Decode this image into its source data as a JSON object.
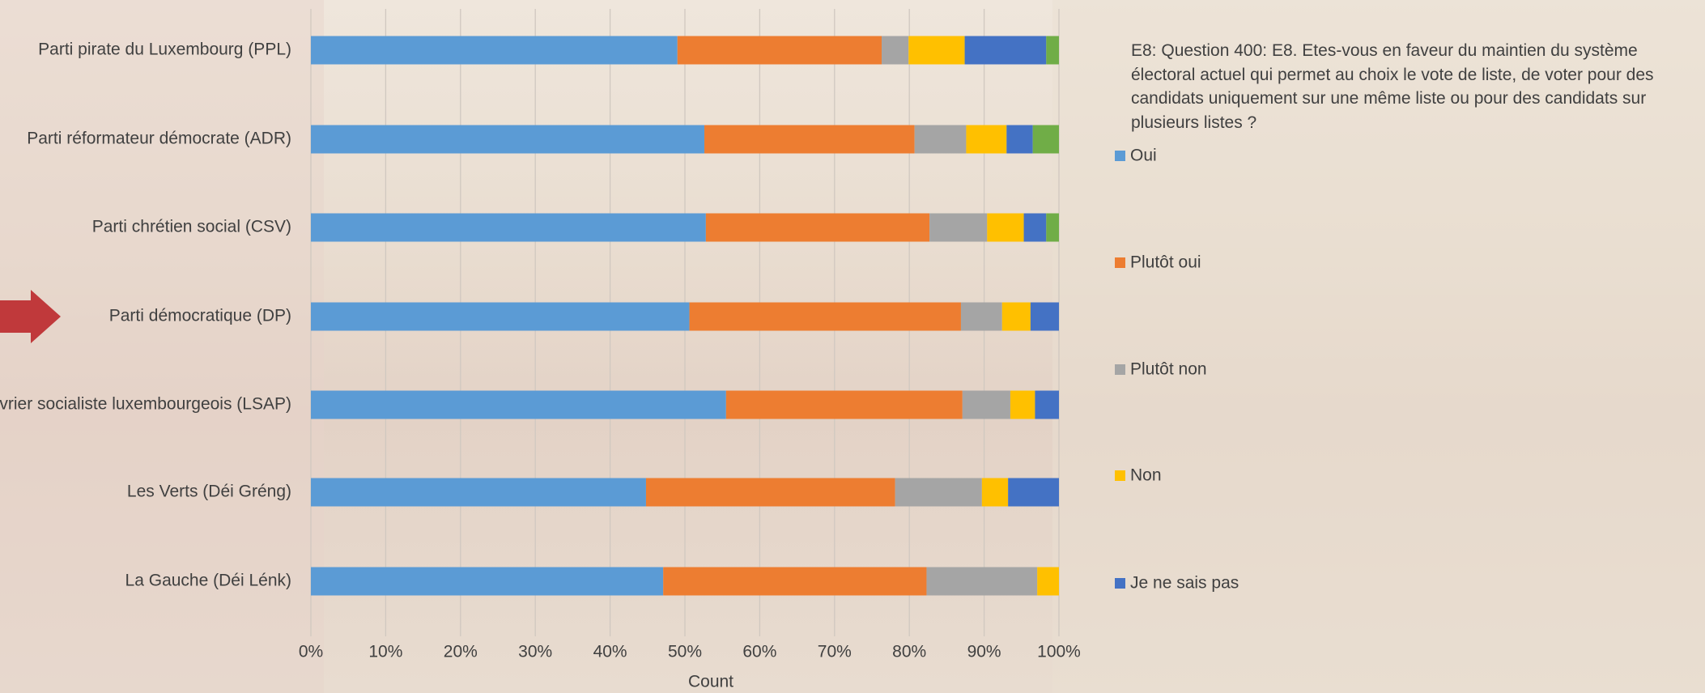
{
  "chart_data": {
    "type": "stacked_bar_horizontal",
    "question": "E8: Question 400: E8. Etes-vous en faveur du maintien du système électoral actuel qui permet au choix le vote de liste, de voter pour des candidats uniquement sur une même liste ou pour des candidats sur plusieurs listes ?",
    "xlabel": "Count",
    "categories": [
      "Parti pirate du Luxembourg (PPL)",
      "Parti réformateur démocrate (ADR)",
      "Parti chrétien social (CSV)",
      "Parti démocratique (DP)",
      "Parti ouvrier socialiste luxembourgeois (LSAP)",
      "Les Verts (Déi Gréng)",
      "La Gauche (Déi Lénk)"
    ],
    "series": [
      {
        "name": "Oui",
        "color": "#5b9bd5",
        "values": [
          49.0,
          52.6,
          52.8,
          50.6,
          55.5,
          44.8,
          47.1
        ]
      },
      {
        "name": "Plutôt oui",
        "color": "#ed7d31",
        "values": [
          27.3,
          28.1,
          29.9,
          36.3,
          31.6,
          33.3,
          35.2
        ]
      },
      {
        "name": "Plutôt non",
        "color": "#a5a5a5",
        "values": [
          3.6,
          6.9,
          7.7,
          5.5,
          6.4,
          11.6,
          14.8
        ]
      },
      {
        "name": "Non",
        "color": "#ffc000",
        "values": [
          7.5,
          5.4,
          4.9,
          3.8,
          3.3,
          3.5,
          2.9
        ]
      },
      {
        "name": "Je ne sais pas",
        "color": "#4472c4",
        "values": [
          10.9,
          3.5,
          3.0,
          3.8,
          3.2,
          6.8,
          0
        ]
      },
      {
        "color": "#70ad47",
        "values": [
          1.7,
          3.5,
          1.7,
          0,
          0,
          0,
          0
        ]
      }
    ],
    "xlim": [
      0,
      100
    ],
    "xticks": [
      {
        "value": 0,
        "label": "0%"
      },
      {
        "value": 10,
        "label": "10%"
      },
      {
        "value": 20,
        "label": "20%"
      },
      {
        "value": 30,
        "label": "30%"
      },
      {
        "value": 40,
        "label": "40%"
      },
      {
        "value": 50,
        "label": "50%"
      },
      {
        "value": 60,
        "label": "60%"
      },
      {
        "value": 70,
        "label": "70%"
      },
      {
        "value": 80,
        "label": "80%"
      },
      {
        "value": 90,
        "label": "90%"
      },
      {
        "value": 100,
        "label": "100%"
      }
    ],
    "grid": true
  }
}
